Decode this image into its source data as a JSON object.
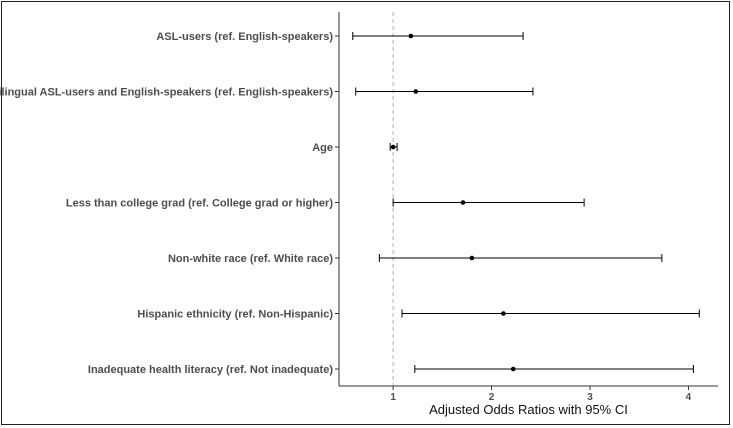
{
  "chart_data": {
    "type": "forest",
    "title": "",
    "xlabel": "Adjusted Odds Ratios with 95% CI",
    "ylabel": "",
    "xlim": [
      0.45,
      4.3
    ],
    "xticks": [
      1,
      2,
      3,
      4
    ],
    "reference_line": 1,
    "grid": false,
    "colors": {
      "marker": "#000000",
      "reference": "#b0b0b0",
      "axis": "#333333"
    },
    "rows": [
      {
        "label": "ASL-users (ref. English-speakers)",
        "or": 1.18,
        "lower": 0.59,
        "upper": 2.32
      },
      {
        "label": "Bilingual ASL-users and English-speakers (ref. English-speakers)",
        "or": 1.23,
        "lower": 0.62,
        "upper": 2.42
      },
      {
        "label": "Age",
        "or": 1.0,
        "lower": 0.97,
        "upper": 1.04
      },
      {
        "label": "Less than college grad (ref. College grad or higher)",
        "or": 1.71,
        "lower": 1.0,
        "upper": 2.94
      },
      {
        "label": "Non-white race (ref. White race)",
        "or": 1.8,
        "lower": 0.86,
        "upper": 3.73
      },
      {
        "label": "Hispanic ethnicity (ref. Non-Hispanic)",
        "or": 2.12,
        "lower": 1.09,
        "upper": 4.11
      },
      {
        "label": "Inadequate health literacy (ref. Not inadequate)",
        "or": 2.22,
        "lower": 1.22,
        "upper": 4.05
      }
    ]
  }
}
